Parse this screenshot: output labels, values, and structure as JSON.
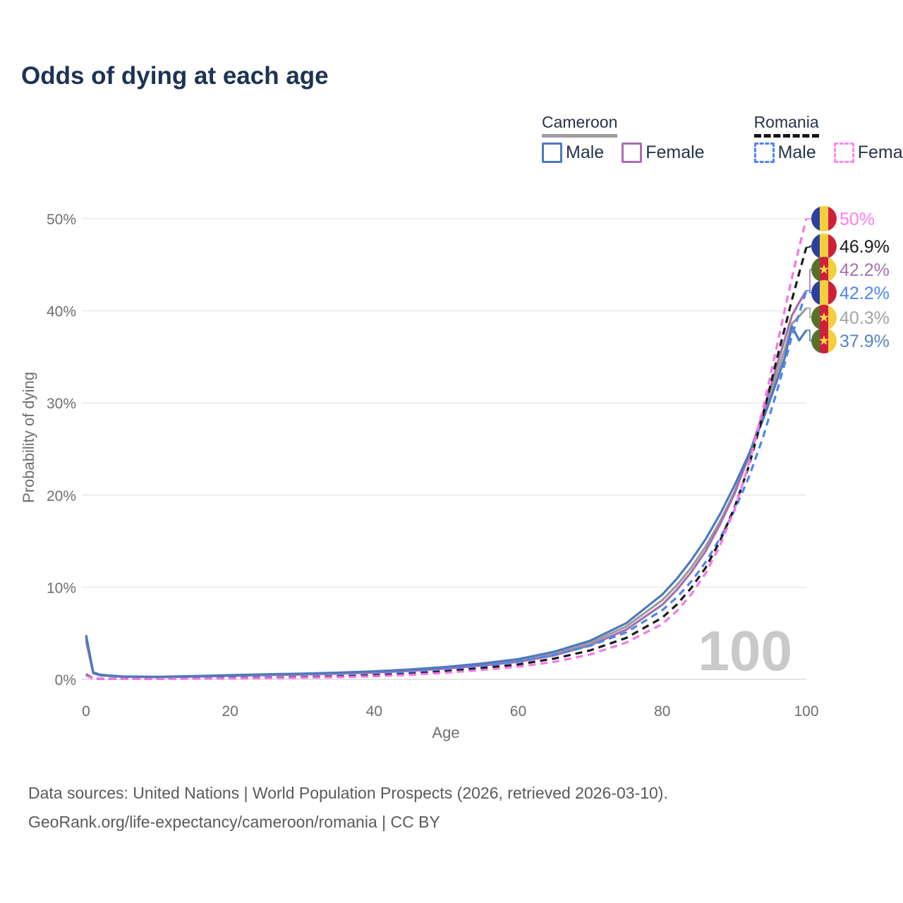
{
  "title": "Odds of dying at each age",
  "legend": {
    "groups": [
      {
        "country": "Cameroon",
        "style": "solid",
        "items": [
          {
            "label": "Male",
            "color": "#4b7abc"
          },
          {
            "label": "Female",
            "color": "#a76fb0"
          }
        ]
      },
      {
        "country": "Romania",
        "style": "dashed",
        "items": [
          {
            "label": "Male",
            "color": "#4c86f0"
          },
          {
            "label": "Female",
            "color": "#fd86ee"
          }
        ]
      }
    ]
  },
  "chart_data": {
    "type": "line",
    "title": "Odds of dying at each age",
    "xlabel": "Age",
    "ylabel": "Probability of dying",
    "xlim": [
      0,
      100
    ],
    "ylim": [
      0,
      50
    ],
    "grid": "horizontal",
    "legend_position": "top-right",
    "watermark": "100",
    "x_ticks": [
      "0",
      "20",
      "40",
      "60",
      "80",
      "100"
    ],
    "x_tick_values": [
      0,
      20,
      40,
      60,
      80,
      100
    ],
    "y_ticks": [
      "0%",
      "10%",
      "20%",
      "30%",
      "40%",
      "50%"
    ],
    "y_tick_values": [
      0,
      10,
      20,
      30,
      40,
      50
    ],
    "x": [
      0,
      1,
      2,
      5,
      10,
      15,
      20,
      25,
      30,
      35,
      40,
      45,
      50,
      55,
      60,
      65,
      70,
      75,
      80,
      82,
      84,
      86,
      88,
      90,
      92,
      94,
      96,
      97,
      98,
      99,
      100
    ],
    "series": [
      {
        "id": "cm_all",
        "country": "Cameroon",
        "sex": "both",
        "flag": "cm",
        "dash": false,
        "color": "#9c9c9c",
        "end_label": "40.3%",
        "end_value": 40.3,
        "label_color": "#a3a3a3",
        "values": [
          4.5,
          0.7,
          0.46,
          0.3,
          0.26,
          0.33,
          0.42,
          0.51,
          0.58,
          0.67,
          0.8,
          0.99,
          1.26,
          1.6,
          2.05,
          2.8,
          3.95,
          5.75,
          8.6,
          10.2,
          12.1,
          14.4,
          17.1,
          20.3,
          24.1,
          28.5,
          33.4,
          35.8,
          38.6,
          39.4,
          40.3
        ]
      },
      {
        "id": "cm_female",
        "country": "Cameroon",
        "sex": "female",
        "flag": "cm",
        "dash": false,
        "color": "#a76fb0",
        "end_label": "42.2%",
        "end_value": 42.2,
        "label_color": "#a76fb0",
        "values": [
          4.2,
          0.65,
          0.43,
          0.28,
          0.24,
          0.3,
          0.38,
          0.46,
          0.53,
          0.62,
          0.74,
          0.92,
          1.17,
          1.5,
          1.9,
          2.6,
          3.7,
          5.4,
          8.1,
          9.7,
          11.6,
          13.9,
          16.8,
          20.1,
          24.2,
          29.0,
          34.3,
          36.9,
          39.5,
          40.9,
          42.2
        ]
      },
      {
        "id": "cm_male",
        "country": "Cameroon",
        "sex": "male",
        "flag": "cm",
        "dash": false,
        "color": "#4b7abc",
        "end_label": "37.9%",
        "end_value": 37.9,
        "label_color": "#5585c8",
        "values": [
          4.8,
          0.75,
          0.5,
          0.32,
          0.28,
          0.36,
          0.46,
          0.55,
          0.63,
          0.73,
          0.87,
          1.07,
          1.35,
          1.72,
          2.2,
          3.0,
          4.2,
          6.1,
          9.2,
          10.9,
          12.9,
          15.2,
          17.9,
          21.0,
          24.4,
          28.2,
          32.6,
          34.9,
          38.3,
          36.8,
          37.9
        ]
      },
      {
        "id": "ro_male",
        "country": "Romania",
        "sex": "male",
        "flag": "ro",
        "dash": true,
        "color": "#4c86f0",
        "end_label": "42.2%",
        "end_value": 42.2,
        "label_color": "#4c86f0",
        "values": [
          0.55,
          0.09,
          0.07,
          0.06,
          0.07,
          0.11,
          0.16,
          0.21,
          0.27,
          0.37,
          0.52,
          0.73,
          1.02,
          1.42,
          1.95,
          2.65,
          3.65,
          5.1,
          7.5,
          8.9,
          10.6,
          12.7,
          15.3,
          18.3,
          21.9,
          26.3,
          31.5,
          34.3,
          37.3,
          39.7,
          42.2
        ]
      },
      {
        "id": "ro_all",
        "country": "Romania",
        "sex": "both",
        "flag": "ro",
        "dash": true,
        "color": "#1a1a1a",
        "end_label": "46.9%",
        "end_value": 46.9,
        "label_color": "#1a1a1a",
        "values": [
          0.48,
          0.08,
          0.06,
          0.05,
          0.06,
          0.09,
          0.13,
          0.17,
          0.22,
          0.3,
          0.42,
          0.6,
          0.87,
          1.22,
          1.62,
          2.25,
          3.15,
          4.5,
          6.7,
          8.1,
          9.9,
          12.1,
          15.0,
          18.6,
          23.1,
          28.7,
          35.1,
          38.1,
          41.2,
          44.1,
          46.9
        ]
      },
      {
        "id": "ro_female",
        "country": "Romania",
        "sex": "female",
        "flag": "ro",
        "dash": true,
        "color": "#fa74e8",
        "end_label": "50%",
        "end_value": 50.0,
        "label_color": "#fb7bf0",
        "values": [
          0.42,
          0.07,
          0.05,
          0.045,
          0.05,
          0.08,
          0.11,
          0.14,
          0.18,
          0.24,
          0.34,
          0.5,
          0.72,
          1.02,
          1.38,
          1.9,
          2.7,
          4.0,
          6.0,
          7.4,
          9.2,
          11.5,
          14.5,
          18.4,
          23.3,
          29.4,
          36.5,
          40.1,
          43.6,
          46.9,
          50.0
        ]
      }
    ]
  },
  "flags": {
    "ro_colors": [
      "#2b3f9e",
      "#f2cf3c",
      "#cf1f3c"
    ],
    "cm_colors": [
      "#55722d",
      "#cf1f3c",
      "#f2cf3c"
    ],
    "cm_star": "#f7d348"
  },
  "footer": {
    "line1": "Data sources: United Nations | World Population Prospects (2026, retrieved 2026-03-10).",
    "line2": "GeoRank.org/life-expectancy/cameroon/romania | CC BY"
  }
}
